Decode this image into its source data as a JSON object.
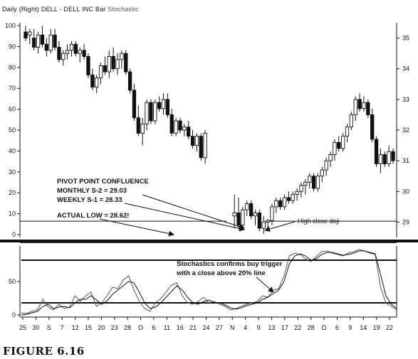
{
  "header": {
    "text": "Daily (Right) DELL - DELL INC Bar",
    "indicator": "Stochastic"
  },
  "figure_caption": "FIGURE 6.16",
  "chart_data": [
    {
      "type": "candlestick",
      "panel": "price",
      "left_axis": {
        "ticks": [
          "0",
          "10",
          "20",
          "30",
          "40",
          "50",
          "60",
          "70",
          "80",
          "90",
          "100"
        ]
      },
      "right_axis": {
        "ticks": [
          "29",
          "30",
          "31",
          "32",
          "33",
          "34",
          "35"
        ]
      },
      "price_range": [
        28.5,
        35.5
      ],
      "x_labels": [
        "25",
        "30",
        "S",
        "7",
        "12",
        "15",
        "20",
        "23",
        "28",
        "O",
        "6",
        "11",
        "16",
        "21",
        "24",
        "27",
        "N",
        "4",
        "9",
        "13",
        "17",
        "22",
        "28",
        "D",
        "6",
        "9",
        "14",
        "19",
        "22"
      ],
      "candles_price_scale": [
        {
          "o": 35.2,
          "h": 35.4,
          "l": 34.9,
          "c": 35.0
        },
        {
          "o": 35.1,
          "h": 35.3,
          "l": 34.8,
          "c": 35.2
        },
        {
          "o": 35.0,
          "h": 35.3,
          "l": 34.6,
          "c": 34.7
        },
        {
          "o": 34.7,
          "h": 35.2,
          "l": 34.5,
          "c": 35.1
        },
        {
          "o": 35.1,
          "h": 35.4,
          "l": 34.7,
          "c": 34.8
        },
        {
          "o": 34.8,
          "h": 35.0,
          "l": 34.4,
          "c": 34.6
        },
        {
          "o": 34.6,
          "h": 35.3,
          "l": 34.5,
          "c": 35.1
        },
        {
          "o": 35.1,
          "h": 35.3,
          "l": 34.6,
          "c": 34.7
        },
        {
          "o": 34.7,
          "h": 34.9,
          "l": 34.2,
          "c": 34.3
        },
        {
          "o": 34.3,
          "h": 34.6,
          "l": 34.1,
          "c": 34.5
        },
        {
          "o": 34.5,
          "h": 34.8,
          "l": 34.3,
          "c": 34.6
        },
        {
          "o": 34.6,
          "h": 34.9,
          "l": 34.4,
          "c": 34.8
        },
        {
          "o": 34.8,
          "h": 34.9,
          "l": 34.4,
          "c": 34.5
        },
        {
          "o": 34.5,
          "h": 34.7,
          "l": 34.2,
          "c": 34.6
        },
        {
          "o": 34.6,
          "h": 34.8,
          "l": 34.3,
          "c": 34.4
        },
        {
          "o": 34.4,
          "h": 34.5,
          "l": 33.7,
          "c": 33.8
        },
        {
          "o": 33.8,
          "h": 34.0,
          "l": 33.3,
          "c": 33.4
        },
        {
          "o": 33.4,
          "h": 33.8,
          "l": 33.2,
          "c": 33.7
        },
        {
          "o": 33.7,
          "h": 34.2,
          "l": 33.5,
          "c": 34.1
        },
        {
          "o": 34.1,
          "h": 34.4,
          "l": 33.8,
          "c": 33.9
        },
        {
          "o": 33.9,
          "h": 34.6,
          "l": 33.7,
          "c": 34.4
        },
        {
          "o": 34.4,
          "h": 34.7,
          "l": 33.9,
          "c": 34.0
        },
        {
          "o": 34.0,
          "h": 34.5,
          "l": 33.8,
          "c": 34.3
        },
        {
          "o": 34.3,
          "h": 34.6,
          "l": 34.0,
          "c": 34.5
        },
        {
          "o": 34.5,
          "h": 34.6,
          "l": 33.8,
          "c": 33.9
        },
        {
          "o": 33.9,
          "h": 34.0,
          "l": 33.2,
          "c": 33.3
        },
        {
          "o": 33.3,
          "h": 33.5,
          "l": 32.3,
          "c": 32.4
        },
        {
          "o": 32.4,
          "h": 32.8,
          "l": 31.8,
          "c": 31.9
        },
        {
          "o": 31.9,
          "h": 32.4,
          "l": 31.5,
          "c": 32.2
        },
        {
          "o": 32.2,
          "h": 33.0,
          "l": 32.0,
          "c": 32.9
        },
        {
          "o": 32.9,
          "h": 33.0,
          "l": 32.2,
          "c": 32.3
        },
        {
          "o": 32.3,
          "h": 33.0,
          "l": 32.2,
          "c": 32.9
        },
        {
          "o": 32.9,
          "h": 33.1,
          "l": 32.6,
          "c": 32.7
        },
        {
          "o": 32.7,
          "h": 33.2,
          "l": 32.5,
          "c": 33.0
        },
        {
          "o": 33.0,
          "h": 33.2,
          "l": 32.4,
          "c": 32.5
        },
        {
          "o": 32.5,
          "h": 32.7,
          "l": 31.8,
          "c": 31.9
        },
        {
          "o": 31.9,
          "h": 32.4,
          "l": 31.8,
          "c": 32.3
        },
        {
          "o": 32.3,
          "h": 32.4,
          "l": 31.9,
          "c": 32.0
        },
        {
          "o": 32.0,
          "h": 32.2,
          "l": 31.8,
          "c": 32.1
        },
        {
          "o": 32.1,
          "h": 32.3,
          "l": 31.7,
          "c": 31.8
        },
        {
          "o": 31.8,
          "h": 32.0,
          "l": 31.4,
          "c": 31.5
        },
        {
          "o": 31.5,
          "h": 31.9,
          "l": 31.3,
          "c": 31.8
        },
        {
          "o": 31.8,
          "h": 31.9,
          "l": 31.0,
          "c": 31.1
        },
        {
          "o": 31.1,
          "h": 32.0,
          "l": 30.9,
          "c": 31.9
        },
        {
          "o": 29.2,
          "h": 29.9,
          "l": 28.8,
          "c": 29.3
        },
        {
          "o": 29.3,
          "h": 29.8,
          "l": 28.8,
          "c": 28.9
        },
        {
          "o": 28.9,
          "h": 29.5,
          "l": 28.8,
          "c": 29.4
        },
        {
          "o": 29.4,
          "h": 29.7,
          "l": 29.2,
          "c": 29.6
        },
        {
          "o": 29.6,
          "h": 29.7,
          "l": 29.1,
          "c": 29.2
        },
        {
          "o": 29.2,
          "h": 29.4,
          "l": 28.9,
          "c": 29.3
        },
        {
          "o": 29.3,
          "h": 29.4,
          "l": 28.7,
          "c": 28.8
        },
        {
          "o": 28.8,
          "h": 29.2,
          "l": 28.62,
          "c": 29.0
        },
        {
          "o": 29.0,
          "h": 29.1,
          "l": 28.7,
          "c": 29.05
        },
        {
          "o": 29.05,
          "h": 29.6,
          "l": 28.9,
          "c": 29.5
        },
        {
          "o": 29.5,
          "h": 29.8,
          "l": 29.3,
          "c": 29.7
        },
        {
          "o": 29.7,
          "h": 29.8,
          "l": 29.4,
          "c": 29.5
        },
        {
          "o": 29.5,
          "h": 29.9,
          "l": 29.4,
          "c": 29.8
        },
        {
          "o": 29.8,
          "h": 30.0,
          "l": 29.6,
          "c": 29.7
        },
        {
          "o": 29.7,
          "h": 30.0,
          "l": 29.6,
          "c": 29.9
        },
        {
          "o": 29.9,
          "h": 30.1,
          "l": 29.7,
          "c": 30.0
        },
        {
          "o": 30.0,
          "h": 30.3,
          "l": 29.8,
          "c": 30.2
        },
        {
          "o": 30.2,
          "h": 30.4,
          "l": 29.9,
          "c": 30.3
        },
        {
          "o": 30.3,
          "h": 30.6,
          "l": 30.1,
          "c": 30.5
        },
        {
          "o": 30.5,
          "h": 30.6,
          "l": 30.0,
          "c": 30.1
        },
        {
          "o": 30.1,
          "h": 30.6,
          "l": 30.0,
          "c": 30.5
        },
        {
          "o": 30.5,
          "h": 30.8,
          "l": 30.3,
          "c": 30.7
        },
        {
          "o": 30.7,
          "h": 31.1,
          "l": 30.5,
          "c": 31.0
        },
        {
          "o": 31.0,
          "h": 31.3,
          "l": 30.8,
          "c": 31.2
        },
        {
          "o": 31.2,
          "h": 31.7,
          "l": 31.0,
          "c": 31.6
        },
        {
          "o": 31.6,
          "h": 31.8,
          "l": 31.3,
          "c": 31.4
        },
        {
          "o": 31.4,
          "h": 31.9,
          "l": 31.3,
          "c": 31.8
        },
        {
          "o": 31.8,
          "h": 32.2,
          "l": 31.6,
          "c": 32.1
        },
        {
          "o": 32.1,
          "h": 32.6,
          "l": 32.0,
          "c": 32.5
        },
        {
          "o": 32.5,
          "h": 33.1,
          "l": 32.3,
          "c": 33.0
        },
        {
          "o": 33.0,
          "h": 33.2,
          "l": 32.6,
          "c": 32.7
        },
        {
          "o": 32.7,
          "h": 33.1,
          "l": 32.6,
          "c": 32.9
        },
        {
          "o": 32.9,
          "h": 33.0,
          "l": 32.4,
          "c": 32.5
        },
        {
          "o": 32.5,
          "h": 32.7,
          "l": 31.6,
          "c": 31.7
        },
        {
          "o": 31.7,
          "h": 31.8,
          "l": 30.8,
          "c": 30.9
        },
        {
          "o": 30.9,
          "h": 31.4,
          "l": 30.6,
          "c": 31.2
        },
        {
          "o": 31.2,
          "h": 31.3,
          "l": 30.8,
          "c": 30.9
        },
        {
          "o": 30.9,
          "h": 31.5,
          "l": 30.8,
          "c": 31.3
        },
        {
          "o": 31.3,
          "h": 31.4,
          "l": 30.9,
          "c": 31.0
        }
      ],
      "support_lines": [
        {
          "name": "Monthly S-2",
          "value": 29.03
        },
        {
          "name": "Weekly S-1",
          "value": 28.33
        }
      ],
      "annotations": {
        "confluence": [
          "PIVOT POINT CONFLUENCE",
          "MONTHLY S-2 = 29.03",
          "WEEKLY S-1 = 28.33"
        ],
        "actual_low": "ACTUAL LOW = 28.62!",
        "doji": "High close doji"
      }
    },
    {
      "type": "line",
      "panel": "stochastic",
      "left_axis": {
        "ticks": [
          "0",
          "50"
        ]
      },
      "ylim": [
        0,
        100
      ],
      "levels": [
        80,
        20
      ],
      "annotation": [
        "Stochastics confirms buy trigger",
        "with a close above 20% line"
      ],
      "series": [
        {
          "values": [
            6,
            5,
            8,
            10,
            25,
            14,
            10,
            18,
            12,
            14,
            30,
            22,
            30,
            35,
            15,
            20,
            30,
            42,
            40,
            52,
            58,
            38,
            22,
            12,
            8,
            20,
            26,
            35,
            45,
            48,
            30,
            20,
            18,
            22,
            28,
            20,
            22,
            18,
            15,
            10,
            12,
            15,
            18,
            20,
            22,
            30,
            28,
            38,
            40,
            58,
            86,
            90,
            88,
            82,
            78,
            85,
            92,
            93,
            90,
            88,
            86,
            90,
            92,
            95,
            93,
            90,
            88,
            42,
            20,
            15,
            10
          ]
        },
        {
          "values": [
            3,
            4,
            6,
            8,
            15,
            18,
            12,
            14,
            15,
            13,
            20,
            25,
            25,
            30,
            24,
            18,
            23,
            32,
            38,
            44,
            50,
            48,
            35,
            20,
            12,
            14,
            20,
            28,
            36,
            44,
            38,
            28,
            20,
            18,
            22,
            24,
            20,
            20,
            17,
            13,
            11,
            13,
            16,
            18,
            20,
            25,
            28,
            33,
            38,
            50,
            75,
            86,
            89,
            86,
            80,
            82,
            88,
            91,
            91,
            89,
            87,
            88,
            90,
            93,
            93,
            91,
            89,
            60,
            30,
            18,
            12
          ]
        }
      ],
      "annotation_arrow_target_index": 48
    }
  ]
}
